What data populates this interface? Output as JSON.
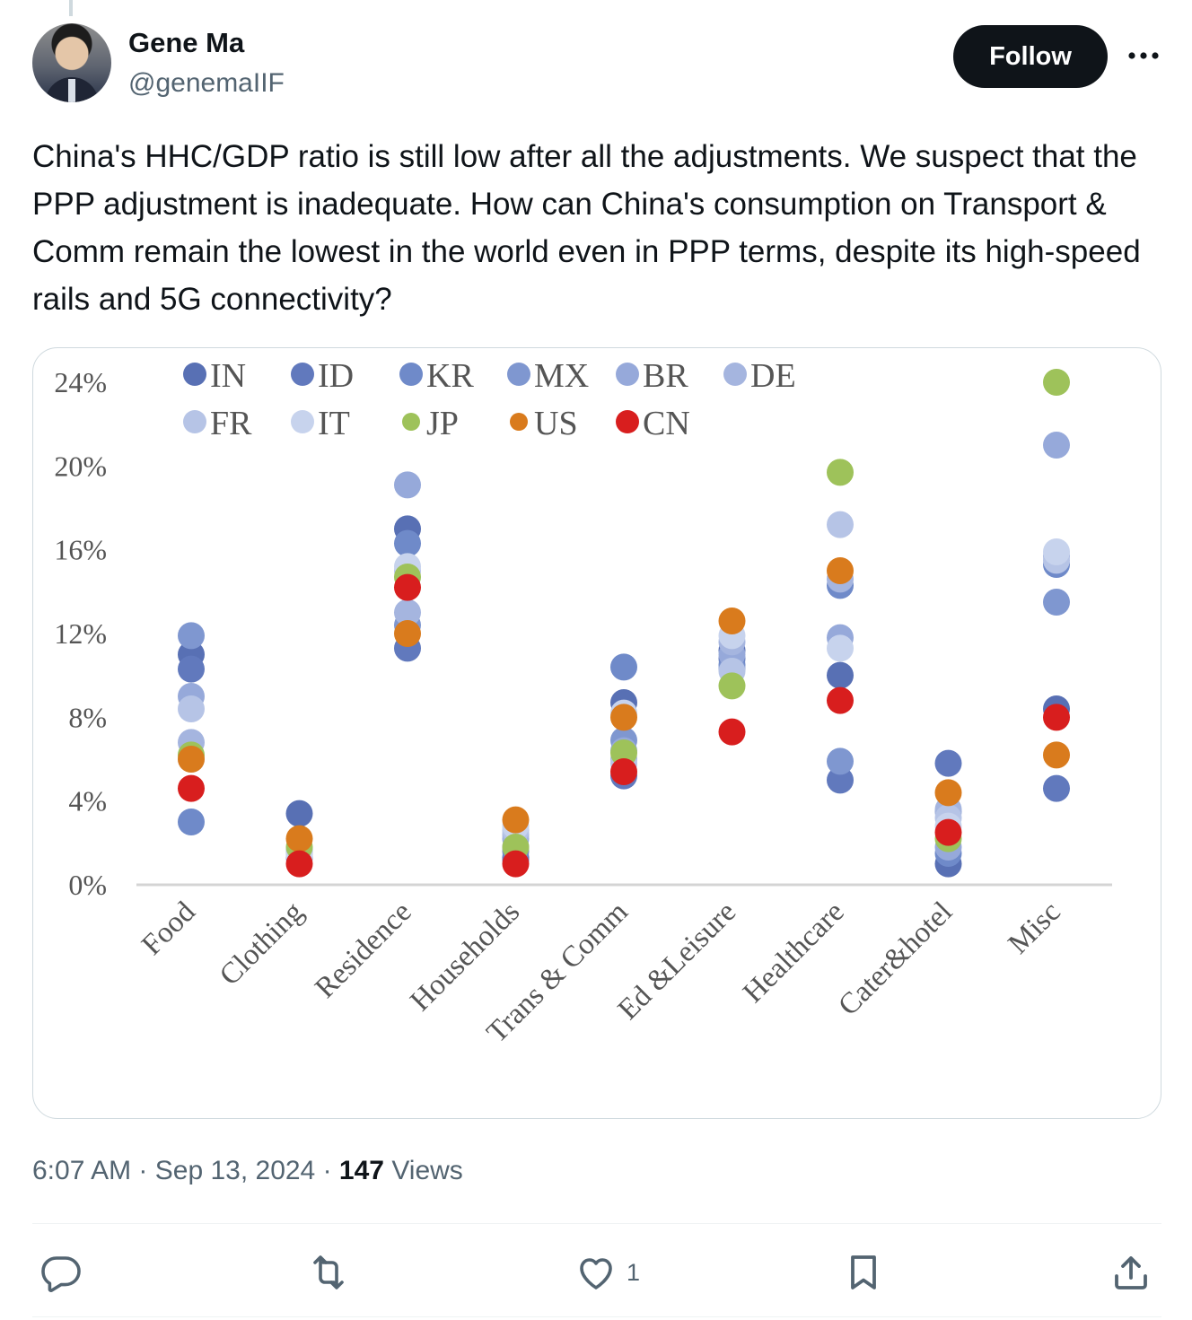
{
  "user": {
    "name": "Gene Ma",
    "handle": "@genemaIIF"
  },
  "follow_label": "Follow",
  "tweet_text": "China's HHC/GDP ratio is still low after all the adjustments. We suspect that the PPP adjustment is inadequate. How can China's consumption on Transport & Comm remain the lowest in the world even in PPP terms, despite its high-speed rails and 5G connectivity?",
  "meta": {
    "time": "6:07 AM",
    "date": "Sep 13, 2024",
    "views_count": "147",
    "views_label": "Views"
  },
  "actions": {
    "likes_count": "1"
  },
  "icons": [
    "reply-icon",
    "repost-icon",
    "like-icon",
    "bookmark-icon",
    "share-icon",
    "more-icon"
  ],
  "colors": {
    "text": "#0f1419",
    "muted": "#536471",
    "border": "#cfd9de"
  },
  "chart_data": {
    "type": "scatter",
    "title": "",
    "xlabel": "",
    "ylabel": "",
    "ylim": [
      0,
      24
    ],
    "yticks": [
      0,
      4,
      8,
      12,
      16,
      20,
      24
    ],
    "ytick_labels": [
      "0%",
      "4%",
      "8%",
      "12%",
      "16%",
      "20%",
      "24%"
    ],
    "categories": [
      "Food",
      "Clothing",
      "Residence",
      "Households",
      "Trans & Comm",
      "Ed &Leisure",
      "Healthcare",
      "Cater&hotel",
      "Misc"
    ],
    "legend_position": "top",
    "series": [
      {
        "name": "IN",
        "color": "#5870b4",
        "values": [
          11.0,
          3.4,
          17.0,
          1.3,
          8.7,
          11.2,
          10.0,
          1.0,
          8.4
        ]
      },
      {
        "name": "ID",
        "color": "#6179bd",
        "values": [
          10.3,
          1.3,
          11.3,
          1.2,
          5.2,
          10.8,
          5.0,
          5.8,
          4.6
        ]
      },
      {
        "name": "KR",
        "color": "#6f8ac9",
        "values": [
          3.0,
          1.5,
          16.3,
          1.6,
          10.4,
          10.5,
          14.3,
          1.5,
          15.3
        ]
      },
      {
        "name": "MX",
        "color": "#7f97d0",
        "values": [
          11.9,
          1.6,
          12.4,
          1.8,
          6.9,
          10.3,
          5.9,
          3.5,
          13.5
        ]
      },
      {
        "name": "BR",
        "color": "#96a9da",
        "values": [
          9.0,
          1.7,
          19.1,
          2.2,
          6.4,
          11.0,
          11.8,
          1.8,
          21.0
        ]
      },
      {
        "name": "DE",
        "color": "#a5b5df",
        "values": [
          6.8,
          1.5,
          13.0,
          2.4,
          6.0,
          11.6,
          14.6,
          3.6,
          15.7
        ]
      },
      {
        "name": "FR",
        "color": "#b6c4e6",
        "values": [
          8.4,
          1.6,
          15.0,
          2.6,
          5.8,
          10.2,
          17.2,
          3.2,
          15.5
        ]
      },
      {
        "name": "IT",
        "color": "#c7d3ed",
        "values": [
          6.0,
          1.4,
          15.2,
          2.8,
          8.2,
          11.9,
          11.3,
          2.8,
          15.9
        ]
      },
      {
        "name": "JP",
        "color": "#9ec25a",
        "values": [
          6.2,
          1.8,
          14.7,
          1.8,
          6.3,
          9.5,
          19.7,
          2.2,
          24.0
        ]
      },
      {
        "name": "US",
        "color": "#d97b1d",
        "values": [
          6.0,
          2.2,
          12.0,
          3.1,
          8.0,
          12.6,
          15.0,
          4.4,
          6.2
        ]
      },
      {
        "name": "CN",
        "color": "#d81e1e",
        "values": [
          4.6,
          1.0,
          14.2,
          1.0,
          5.4,
          7.3,
          8.8,
          2.5,
          8.0
        ]
      }
    ]
  }
}
